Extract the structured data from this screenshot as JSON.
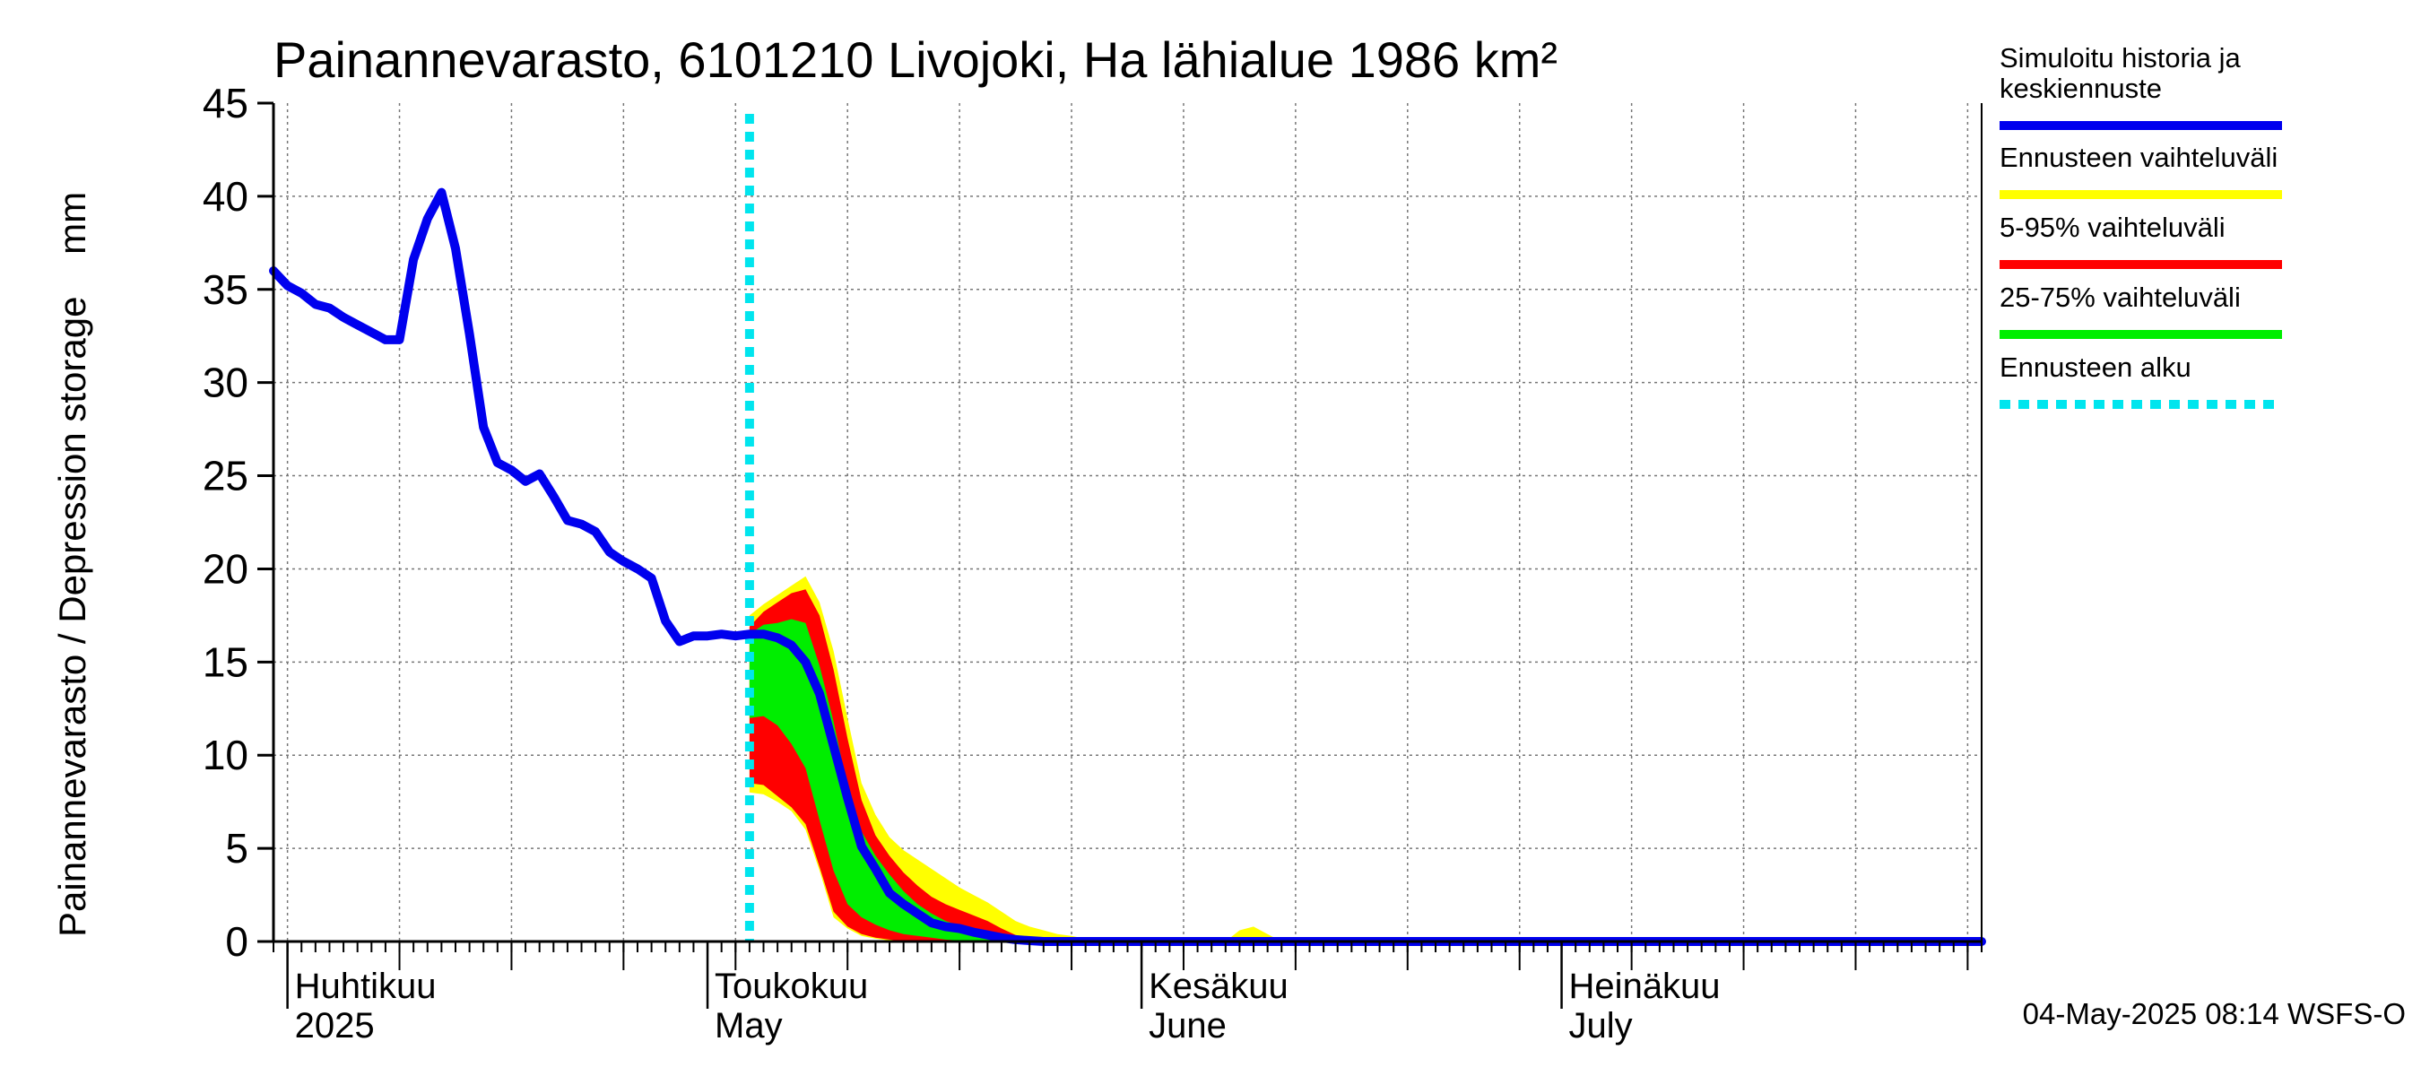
{
  "chart_data": {
    "type": "area",
    "title": "Painannevarasto, 6101210 Livojoki, Ha lähialue 1986 km²",
    "ylabel": "Painannevarasto / Depression storage    mm",
    "ylim": [
      0,
      45
    ],
    "yticks": [
      "0",
      "5",
      "10",
      "15",
      "20",
      "25",
      "30",
      "35",
      "40",
      "45"
    ],
    "xlim": [
      "2025-03-31",
      "2025-07-31"
    ],
    "x_month_labels": [
      {
        "date": "2025-04-01",
        "fi": "Huhtikuu",
        "en": "2025"
      },
      {
        "date": "2025-05-01",
        "fi": "Toukokuu",
        "en": "May"
      },
      {
        "date": "2025-06-01",
        "fi": "Kesäkuu",
        "en": "June"
      },
      {
        "date": "2025-07-01",
        "fi": "Heinäkuu",
        "en": "July"
      }
    ],
    "grid": true,
    "legend_position": "right",
    "forecast_start": "2025-05-04",
    "series": [
      {
        "name": "Simuloitu historia ja keskiennuste",
        "color": "#0000ee",
        "points": [
          [
            "2025-03-31",
            36.0
          ],
          [
            "2025-04-01",
            35.2
          ],
          [
            "2025-04-02",
            34.8
          ],
          [
            "2025-04-03",
            34.2
          ],
          [
            "2025-04-04",
            34.0
          ],
          [
            "2025-04-05",
            33.5
          ],
          [
            "2025-04-06",
            33.1
          ],
          [
            "2025-04-07",
            32.7
          ],
          [
            "2025-04-08",
            32.3
          ],
          [
            "2025-04-09",
            32.3
          ],
          [
            "2025-04-10",
            36.6
          ],
          [
            "2025-04-11",
            38.8
          ],
          [
            "2025-04-12",
            40.2
          ],
          [
            "2025-04-13",
            37.2
          ],
          [
            "2025-04-14",
            32.6
          ],
          [
            "2025-04-15",
            27.6
          ],
          [
            "2025-04-16",
            25.7
          ],
          [
            "2025-04-17",
            25.3
          ],
          [
            "2025-04-18",
            24.7
          ],
          [
            "2025-04-19",
            25.1
          ],
          [
            "2025-04-20",
            23.9
          ],
          [
            "2025-04-21",
            22.6
          ],
          [
            "2025-04-22",
            22.4
          ],
          [
            "2025-04-23",
            22.0
          ],
          [
            "2025-04-24",
            20.9
          ],
          [
            "2025-04-25",
            20.4
          ],
          [
            "2025-04-26",
            20.0
          ],
          [
            "2025-04-27",
            19.5
          ],
          [
            "2025-04-28",
            17.2
          ],
          [
            "2025-04-29",
            16.1
          ],
          [
            "2025-04-30",
            16.4
          ],
          [
            "2025-05-01",
            16.4
          ],
          [
            "2025-05-02",
            16.5
          ],
          [
            "2025-05-03",
            16.4
          ],
          [
            "2025-05-04",
            16.5
          ],
          [
            "2025-05-05",
            16.5
          ],
          [
            "2025-05-06",
            16.3
          ],
          [
            "2025-05-07",
            15.9
          ],
          [
            "2025-05-08",
            15.0
          ],
          [
            "2025-05-09",
            13.3
          ],
          [
            "2025-05-10",
            10.5
          ],
          [
            "2025-05-11",
            7.7
          ],
          [
            "2025-05-12",
            5.1
          ],
          [
            "2025-05-13",
            3.9
          ],
          [
            "2025-05-14",
            2.6
          ],
          [
            "2025-05-15",
            2.0
          ],
          [
            "2025-05-16",
            1.5
          ],
          [
            "2025-05-17",
            1.0
          ],
          [
            "2025-05-18",
            0.8
          ],
          [
            "2025-05-19",
            0.7
          ],
          [
            "2025-05-20",
            0.5
          ],
          [
            "2025-05-21",
            0.35
          ],
          [
            "2025-05-22",
            0.2
          ],
          [
            "2025-05-23",
            0.1
          ],
          [
            "2025-05-24",
            0.05
          ],
          [
            "2025-05-25",
            0.0
          ],
          [
            "2025-07-31",
            0.0
          ]
        ]
      }
    ],
    "bands": [
      {
        "name": "Ennusteen vaihteluväli",
        "color": "#ffff00",
        "points": [
          [
            "2025-05-04",
            8.0,
            17.5
          ],
          [
            "2025-05-05",
            7.9,
            18.1
          ],
          [
            "2025-05-06",
            7.5,
            18.6
          ],
          [
            "2025-05-07",
            7.0,
            19.1
          ],
          [
            "2025-05-08",
            6.0,
            19.6
          ],
          [
            "2025-05-09",
            3.8,
            18.2
          ],
          [
            "2025-05-10",
            1.3,
            15.6
          ],
          [
            "2025-05-11",
            0.7,
            12.0
          ],
          [
            "2025-05-12",
            0.3,
            8.5
          ],
          [
            "2025-05-13",
            0.15,
            6.8
          ],
          [
            "2025-05-14",
            0.05,
            5.6
          ],
          [
            "2025-05-15",
            0.0,
            4.9
          ],
          [
            "2025-05-16",
            0.0,
            4.4
          ],
          [
            "2025-05-17",
            0.0,
            3.9
          ],
          [
            "2025-05-18",
            0.0,
            3.4
          ],
          [
            "2025-05-19",
            0.0,
            2.9
          ],
          [
            "2025-05-20",
            0.0,
            2.5
          ],
          [
            "2025-05-21",
            0.0,
            2.1
          ],
          [
            "2025-05-22",
            0.0,
            1.6
          ],
          [
            "2025-05-23",
            0.0,
            1.1
          ],
          [
            "2025-05-24",
            0.0,
            0.8
          ],
          [
            "2025-05-25",
            0.0,
            0.6
          ],
          [
            "2025-05-26",
            0.0,
            0.4
          ],
          [
            "2025-05-27",
            0.0,
            0.3
          ],
          [
            "2025-05-28",
            0.0,
            0.15
          ],
          [
            "2025-05-29",
            0.0,
            0.05
          ],
          [
            "2025-05-30",
            0.0,
            0.0
          ],
          [
            "2025-06-07",
            0.0,
            0.0
          ],
          [
            "2025-06-08",
            0.0,
            0.6
          ],
          [
            "2025-06-09",
            0.0,
            0.8
          ],
          [
            "2025-06-10",
            0.0,
            0.4
          ],
          [
            "2025-06-11",
            0.0,
            0.0
          ],
          [
            "2025-07-31",
            0.0,
            0.0
          ]
        ]
      },
      {
        "name": "5-95% vaihteluväli",
        "color": "#ff0000",
        "points": [
          [
            "2025-05-04",
            8.5,
            16.9
          ],
          [
            "2025-05-05",
            8.4,
            17.7
          ],
          [
            "2025-05-06",
            7.8,
            18.2
          ],
          [
            "2025-05-07",
            7.2,
            18.7
          ],
          [
            "2025-05-08",
            6.3,
            18.9
          ],
          [
            "2025-05-09",
            4.0,
            17.5
          ],
          [
            "2025-05-10",
            1.6,
            14.6
          ],
          [
            "2025-05-11",
            0.8,
            10.9
          ],
          [
            "2025-05-12",
            0.4,
            7.6
          ],
          [
            "2025-05-13",
            0.2,
            5.7
          ],
          [
            "2025-05-14",
            0.1,
            4.6
          ],
          [
            "2025-05-15",
            0.0,
            3.7
          ],
          [
            "2025-05-16",
            0.0,
            3.0
          ],
          [
            "2025-05-17",
            0.0,
            2.4
          ],
          [
            "2025-05-18",
            0.0,
            2.0
          ],
          [
            "2025-05-19",
            0.0,
            1.7
          ],
          [
            "2025-05-20",
            0.0,
            1.4
          ],
          [
            "2025-05-21",
            0.0,
            1.1
          ],
          [
            "2025-05-22",
            0.0,
            0.7
          ],
          [
            "2025-05-23",
            0.0,
            0.35
          ],
          [
            "2025-05-24",
            0.0,
            0.2
          ],
          [
            "2025-05-25",
            0.0,
            0.1
          ],
          [
            "2025-05-26",
            0.0,
            0.0
          ],
          [
            "2025-07-31",
            0.0,
            0.0
          ]
        ]
      },
      {
        "name": "25-75% vaihteluväli",
        "color": "#00ee00",
        "points": [
          [
            "2025-05-04",
            12.0,
            16.5
          ],
          [
            "2025-05-05",
            12.1,
            17.0
          ],
          [
            "2025-05-06",
            11.6,
            17.1
          ],
          [
            "2025-05-07",
            10.6,
            17.3
          ],
          [
            "2025-05-08",
            9.3,
            17.1
          ],
          [
            "2025-05-09",
            6.5,
            14.8
          ],
          [
            "2025-05-10",
            3.8,
            11.8
          ],
          [
            "2025-05-11",
            2.0,
            8.3
          ],
          [
            "2025-05-12",
            1.3,
            5.9
          ],
          [
            "2025-05-13",
            0.9,
            4.6
          ],
          [
            "2025-05-14",
            0.6,
            3.6
          ],
          [
            "2025-05-15",
            0.4,
            2.7
          ],
          [
            "2025-05-16",
            0.3,
            2.0
          ],
          [
            "2025-05-17",
            0.2,
            1.5
          ],
          [
            "2025-05-18",
            0.1,
            1.1
          ],
          [
            "2025-05-19",
            0.05,
            0.85
          ],
          [
            "2025-05-20",
            0.0,
            0.6
          ],
          [
            "2025-05-21",
            0.0,
            0.4
          ],
          [
            "2025-05-22",
            0.0,
            0.2
          ],
          [
            "2025-05-23",
            0.0,
            0.1
          ],
          [
            "2025-05-24",
            0.0,
            0.0
          ],
          [
            "2025-07-31",
            0.0,
            0.0
          ]
        ]
      }
    ],
    "legend": [
      {
        "label": "Simuloitu historia ja keskiennuste",
        "color": "#0000ee",
        "style": "solid"
      },
      {
        "label": "Ennusteen vaihteluväli",
        "color": "#ffff00",
        "style": "solid"
      },
      {
        "label": "5-95% vaihteluväli",
        "color": "#ff0000",
        "style": "solid"
      },
      {
        "label": "25-75% vaihteluväli",
        "color": "#00ee00",
        "style": "solid"
      },
      {
        "label": "Ennusteen alku",
        "color": "#00e5ee",
        "style": "dotted"
      }
    ]
  },
  "footer": {
    "timestamp": "04-May-2025 08:14 WSFS-O"
  }
}
